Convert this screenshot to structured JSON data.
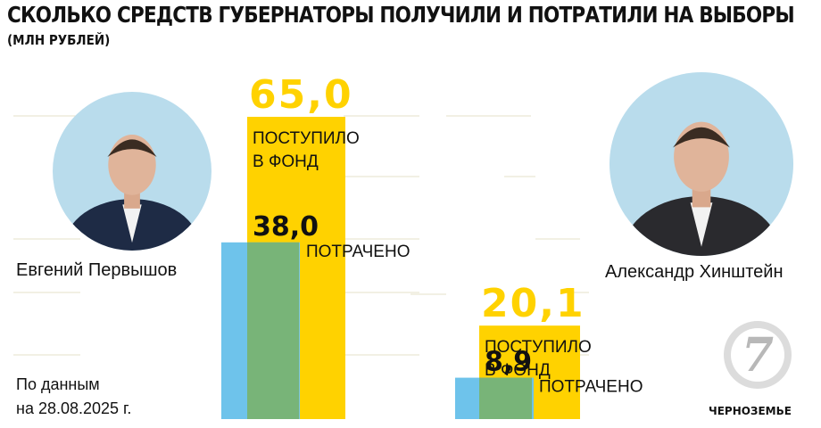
{
  "header": {
    "title": "СКОЛЬКО СРЕДСТВ ГУБЕРНАТОРЫ ПОЛУЧИЛИ И ПОТРАТИЛИ НА ВЫБОРЫ",
    "subtitle": "(МЛН РУБЛЕЙ)"
  },
  "colors": {
    "received": "#FFD200",
    "spent": "#78B478",
    "accent": "#6EC3EB",
    "value_received": "#FFD200",
    "value_spent": "#111111"
  },
  "governors": [
    {
      "name": "Евгений Первышов",
      "photo_icon": "portrait-photo-icon"
    },
    {
      "name": "Александр Хинштейн",
      "photo_icon": "portrait-photo-icon"
    }
  ],
  "chart_data": {
    "type": "bar",
    "title": "СКОЛЬКО СРЕДСТВ ГУБЕРНАТОРЫ ПОЛУЧИЛИ И ПОТРАТИЛИ НА ВЫБОРЫ",
    "subtitle": "(МЛН РУБЛЕЙ)",
    "categories": [
      "Евгений Первышов",
      "Александр Хинштейн"
    ],
    "series": [
      {
        "name": "ПОСТУПИЛО В ФОНД",
        "values": [
          65.0,
          20.1
        ],
        "labels": [
          "65,0",
          "20,1"
        ],
        "color": "#FFD200"
      },
      {
        "name": "ПОТРАЧЕНО",
        "values": [
          38.0,
          8.9
        ],
        "labels": [
          "38,0",
          "8,9"
        ],
        "color": "#78B478"
      }
    ],
    "received_caption": [
      "ПОСТУПИЛО",
      "В ФОНД"
    ],
    "spent_caption": "ПОТРАЧЕНО",
    "grid": true
  },
  "footer": {
    "source_line1": "По данным",
    "source_line2": "на 28.08.2025 г.",
    "brand": "ЧЕРНОЗЕМЬЕ",
    "logo_icon": "newspaper-emblem-icon"
  }
}
